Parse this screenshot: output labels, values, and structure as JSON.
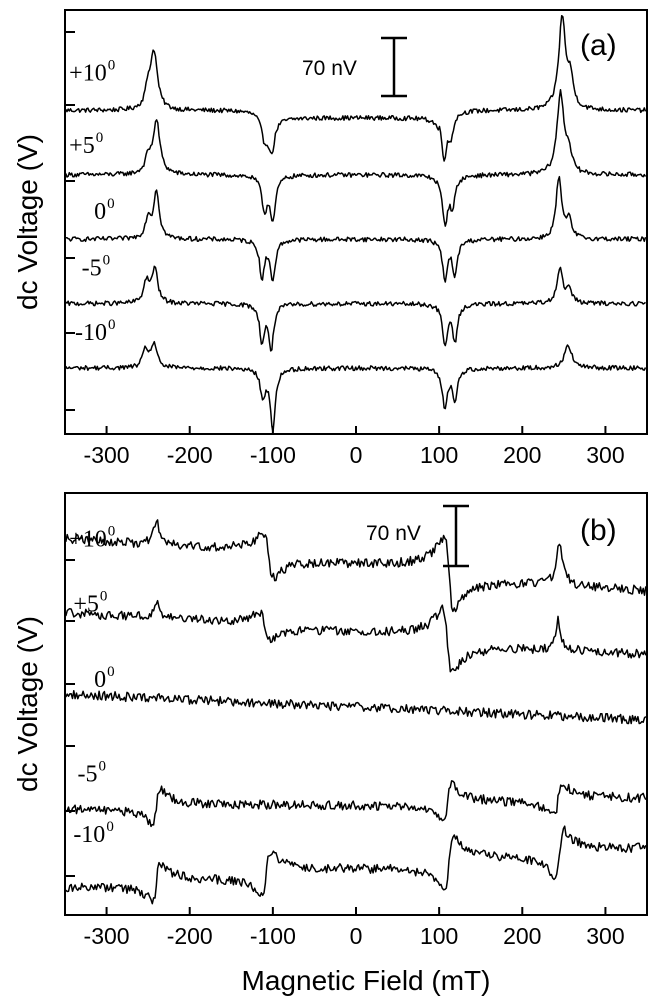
{
  "chart_data": [
    {
      "type": "line",
      "panel_label": "(a)",
      "xlabel": "",
      "ylabel": "dc Voltage (V)",
      "xlim": [
        -350,
        350
      ],
      "xticks": [
        -300,
        -200,
        -100,
        0,
        100,
        200,
        300
      ],
      "xtick_labels": [
        "-300",
        "-200",
        "-100",
        "0",
        "100",
        "200",
        "300"
      ],
      "scale_bar": {
        "label": "70 nV",
        "value_nV": 70
      },
      "y_offset_units_nV": true,
      "series": [
        {
          "name": "+10",
          "superscript": "0",
          "offset": 280,
          "label_x": -345,
          "label_y_shift": 30,
          "peaks": [
            {
              "x": -243,
              "amp": 62,
              "w": 5,
              "type": "lor"
            },
            {
              "x": -250,
              "amp": 20,
              "w": 4,
              "type": "lor"
            },
            {
              "x": -110,
              "amp": -28,
              "w": 5,
              "type": "lor"
            },
            {
              "x": -102,
              "amp": -40,
              "w": 4,
              "type": "lor"
            },
            {
              "x": 106,
              "amp": -48,
              "w": 4,
              "type": "lor"
            },
            {
              "x": 114,
              "amp": -24,
              "w": 4,
              "type": "lor"
            },
            {
              "x": 248,
              "amp": 100,
              "w": 5,
              "type": "lor"
            },
            {
              "x": 258,
              "amp": 30,
              "w": 4,
              "type": "lor"
            }
          ],
          "step_low": -100,
          "step_high": 100,
          "step_amp": -8,
          "noise": 2.5
        },
        {
          "name": "+5",
          "superscript": "0",
          "offset": 210,
          "label_x": -345,
          "label_y_shift": 22,
          "peaks": [
            {
              "x": -240,
              "amp": 58,
              "w": 5,
              "type": "lor"
            },
            {
              "x": -250,
              "amp": 16,
              "w": 4,
              "type": "lor"
            },
            {
              "x": -110,
              "amp": -36,
              "w": 4,
              "type": "lor"
            },
            {
              "x": -100,
              "amp": -46,
              "w": 4,
              "type": "lor"
            },
            {
              "x": 107,
              "amp": -50,
              "w": 4,
              "type": "lor"
            },
            {
              "x": 116,
              "amp": -30,
              "w": 4,
              "type": "lor"
            },
            {
              "x": 246,
              "amp": 88,
              "w": 5,
              "type": "lor"
            },
            {
              "x": 256,
              "amp": 22,
              "w": 4,
              "type": "lor"
            }
          ],
          "noise": 2.5
        },
        {
          "name": "0",
          "superscript": "0",
          "offset": 140,
          "label_x": -315,
          "label_y_shift": 20,
          "peaks": [
            {
              "x": -250,
              "amp": 22,
              "w": 4,
              "type": "lor"
            },
            {
              "x": -240,
              "amp": 52,
              "w": 4,
              "type": "lor"
            },
            {
              "x": -113,
              "amp": -42,
              "w": 3.5,
              "type": "lor"
            },
            {
              "x": -100,
              "amp": -44,
              "w": 3.5,
              "type": "lor"
            },
            {
              "x": 107,
              "amp": -44,
              "w": 3.5,
              "type": "lor"
            },
            {
              "x": 119,
              "amp": -38,
              "w": 3.5,
              "type": "lor"
            },
            {
              "x": 244,
              "amp": 66,
              "w": 4,
              "type": "lor"
            },
            {
              "x": 256,
              "amp": 20,
              "w": 4,
              "type": "lor"
            }
          ],
          "noise": 2.5
        },
        {
          "name": "-5",
          "superscript": "0",
          "offset": 70,
          "label_x": -330,
          "label_y_shift": 28,
          "peaks": [
            {
              "x": -252,
              "amp": 24,
              "w": 4,
              "type": "lor"
            },
            {
              "x": -242,
              "amp": 38,
              "w": 4,
              "type": "lor"
            },
            {
              "x": -113,
              "amp": -40,
              "w": 3.5,
              "type": "lor"
            },
            {
              "x": -102,
              "amp": -48,
              "w": 3.5,
              "type": "lor"
            },
            {
              "x": 107,
              "amp": -44,
              "w": 3.5,
              "type": "lor"
            },
            {
              "x": 119,
              "amp": -40,
              "w": 3.5,
              "type": "lor"
            },
            {
              "x": 245,
              "amp": 38,
              "w": 4,
              "type": "lor"
            },
            {
              "x": 256,
              "amp": 16,
              "w": 4,
              "type": "lor"
            }
          ],
          "noise": 2.5
        },
        {
          "name": "-10",
          "superscript": "0",
          "offset": 0,
          "label_x": -338,
          "label_y_shift": 28,
          "peaks": [
            {
              "x": -253,
              "amp": 20,
              "w": 4,
              "type": "lor"
            },
            {
              "x": -243,
              "amp": 26,
              "w": 4,
              "type": "lor"
            },
            {
              "x": -112,
              "amp": -32,
              "w": 3.5,
              "type": "lor"
            },
            {
              "x": -100,
              "amp": -66,
              "w": 3.5,
              "type": "lor"
            },
            {
              "x": 107,
              "amp": -44,
              "w": 3.5,
              "type": "lor"
            },
            {
              "x": 119,
              "amp": -34,
              "w": 3.5,
              "type": "lor"
            },
            {
              "x": 255,
              "amp": 26,
              "w": 5,
              "type": "lor"
            }
          ],
          "noise": 2.5
        }
      ]
    },
    {
      "type": "line",
      "panel_label": "(b)",
      "xlabel": "Magnetic Field (mT)",
      "ylabel": "dc Voltage (V)",
      "xlim": [
        -350,
        350
      ],
      "xticks": [
        -300,
        -200,
        -100,
        0,
        100,
        200,
        300
      ],
      "xtick_labels": [
        "-300",
        "-200",
        "-100",
        "0",
        "100",
        "200",
        "300"
      ],
      "scale_bar": {
        "label": "70 nV",
        "value_nV": 70
      },
      "series": [
        {
          "name": "+10",
          "superscript": "0",
          "offset": 330,
          "label_x": -345,
          "label_y_shift": 18,
          "slope": -0.075,
          "peaks": [
            {
              "x": -240,
              "amp": 28,
              "w": 4,
              "type": "lor"
            },
            {
              "x": -105,
              "amp": -24,
              "w": 6,
              "type": "disp"
            },
            {
              "x": 112,
              "amp": -40,
              "w": 6,
              "type": "disp"
            },
            {
              "x": 245,
              "amp": 44,
              "w": 5,
              "type": "lor"
            }
          ],
          "noise": 5
        },
        {
          "name": "+5",
          "superscript": "0",
          "offset": 255,
          "label_x": -340,
          "label_y_shift": 22,
          "slope": -0.06,
          "peaks": [
            {
              "x": -240,
              "amp": 18,
              "w": 4,
              "type": "lor"
            },
            {
              "x": -110,
              "amp": -14,
              "w": 6,
              "type": "disp"
            },
            {
              "x": 110,
              "amp": -34,
              "w": 6,
              "type": "disp"
            },
            {
              "x": 243,
              "amp": 32,
              "w": 4,
              "type": "lor"
            }
          ],
          "noise": 5
        },
        {
          "name": "0",
          "superscript": "0",
          "offset": 175,
          "label_x": -315,
          "label_y_shift": 20,
          "slope": -0.04,
          "peaks": [],
          "noise": 5
        },
        {
          "name": "-5",
          "superscript": "0",
          "offset": 70,
          "label_x": -335,
          "label_y_shift": 22,
          "slope": 0.01,
          "peaks": [
            {
              "x": -240,
              "amp": 18,
              "w": 5,
              "type": "disp"
            },
            {
              "x": 110,
              "amp": 20,
              "w": 5,
              "type": "disp"
            },
            {
              "x": 243,
              "amp": 18,
              "w": 5,
              "type": "disp"
            }
          ],
          "noise": 5
        },
        {
          "name": "-10",
          "superscript": "0",
          "offset": 0,
          "label_x": -340,
          "label_y_shift": 26,
          "slope": 0.05,
          "peaks": [
            {
              "x": -240,
              "amp": 20,
              "w": 5,
              "type": "disp"
            },
            {
              "x": -108,
              "amp": 24,
              "w": 6,
              "type": "disp"
            },
            {
              "x": 112,
              "amp": 28,
              "w": 6,
              "type": "disp"
            },
            {
              "x": 245,
              "amp": 26,
              "w": 5,
              "type": "disp"
            }
          ],
          "noise": 5
        }
      ]
    }
  ]
}
